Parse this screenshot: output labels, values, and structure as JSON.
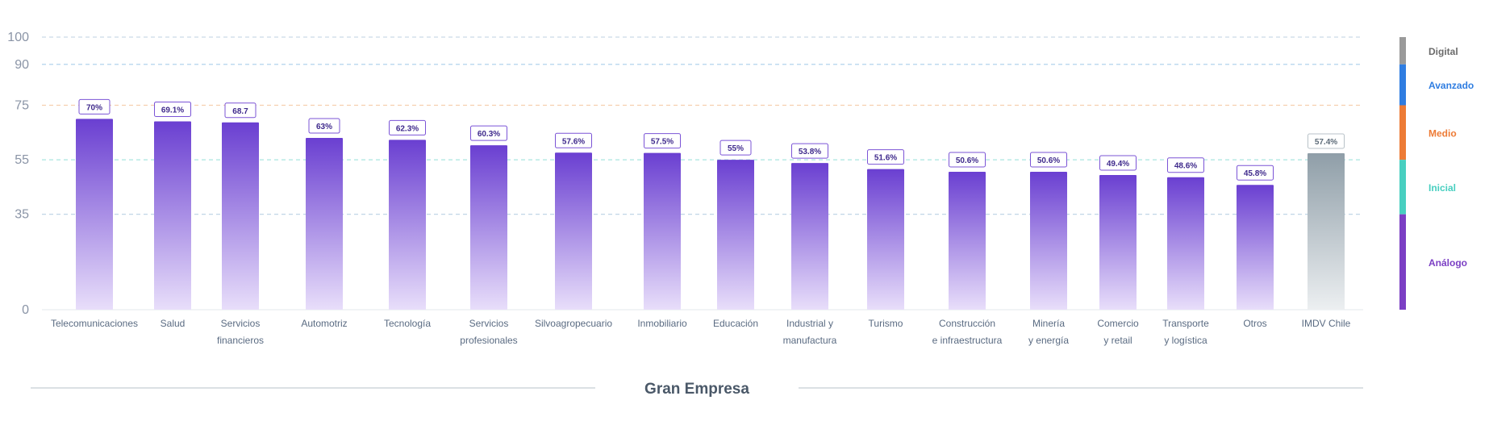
{
  "chart_data": {
    "type": "bar",
    "title": "",
    "xlabel": "Gran Empresa",
    "ylabel": "",
    "ylim": [
      0,
      100
    ],
    "yticks": [
      0,
      35,
      55,
      75,
      90,
      100
    ],
    "grid": true,
    "categories": [
      "Telecomunicaciones",
      "Salud",
      "Servicios financieros",
      "Automotriz",
      "Tecnología",
      "Servicios profesionales",
      "Silvoagropecuario",
      "Inmobiliario",
      "Educación",
      "Industrial y manufactura",
      "Turismo",
      "Construcción e infraestructura",
      "Minería y energía",
      "Comercio y retail",
      "Transporte y logística",
      "Otros",
      "IMDV Chile"
    ],
    "category_lines": [
      [
        "Telecomunicaciones"
      ],
      [
        "Salud"
      ],
      [
        "Servicios",
        "financieros"
      ],
      [
        "Automotriz"
      ],
      [
        "Tecnología"
      ],
      [
        "Servicios",
        "profesionales"
      ],
      [
        "Silvoagropecuario"
      ],
      [
        "Inmobiliario"
      ],
      [
        "Educación"
      ],
      [
        "Industrial y",
        "manufactura"
      ],
      [
        "Turismo"
      ],
      [
        "Construcción",
        "e infraestructura"
      ],
      [
        "Minería",
        "y energía"
      ],
      [
        "Comercio",
        "y retail"
      ],
      [
        "Transporte",
        "y logística"
      ],
      [
        "Otros"
      ],
      [
        "IMDV Chile"
      ]
    ],
    "values": [
      70,
      69.1,
      68.7,
      63,
      62.3,
      60.3,
      57.6,
      57.5,
      55,
      53.8,
      51.6,
      50.6,
      50.6,
      49.4,
      48.6,
      45.8,
      57.4
    ],
    "value_labels": [
      "70%",
      "69.1%",
      "68.7",
      "63%",
      "62.3%",
      "60.3%",
      "57.6%",
      "57.5%",
      "55%",
      "53.8%",
      "51.6%",
      "50.6%",
      "50.6%",
      "49.4%",
      "48.6%",
      "45.8%",
      "57.4%"
    ],
    "highlight_category": "IMDV Chile",
    "colors": {
      "bar_top": "#6a3fd1",
      "bar_bottom": "#e8defa",
      "highlight_top": "#8f9ea8",
      "highlight_bottom": "#eceff1",
      "label_border": "#7b54d6",
      "label_border_grey": "#b8c2c8"
    },
    "grid_lines": [
      {
        "value": 100,
        "color": "#c9dbe8"
      },
      {
        "value": 90,
        "color": "#a9cdea"
      },
      {
        "value": 75,
        "color": "#f6cfae"
      },
      {
        "value": 55,
        "color": "#a9e6df"
      },
      {
        "value": 35,
        "color": "#b9d0e2"
      }
    ],
    "legend": {
      "placement": "right",
      "bands": [
        {
          "label": "Digital",
          "from": 90,
          "to": 100,
          "color": "#9a9a9a",
          "text_color": "#6b6b6b"
        },
        {
          "label": "Avanzado",
          "from": 75,
          "to": 90,
          "color": "#2f7de1",
          "text_color": "#2f7de1"
        },
        {
          "label": "Medio",
          "from": 55,
          "to": 75,
          "color": "#ed7b36",
          "text_color": "#ed7b36"
        },
        {
          "label": "Inicial",
          "from": 35,
          "to": 55,
          "color": "#48cfc0",
          "text_color": "#48cfc0"
        },
        {
          "label": "Análogo",
          "from": 0,
          "to": 35,
          "color": "#7b3fc4",
          "text_color": "#7b3fc4"
        }
      ]
    }
  }
}
